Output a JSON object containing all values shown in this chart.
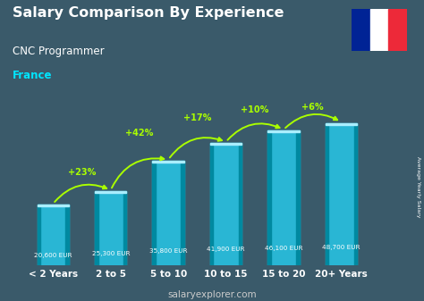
{
  "title": "Salary Comparison By Experience",
  "subtitle": "CNC Programmer",
  "country": "France",
  "categories": [
    "< 2 Years",
    "2 to 5",
    "5 to 10",
    "10 to 15",
    "15 to 20",
    "20+ Years"
  ],
  "values": [
    20600,
    25300,
    35800,
    41900,
    46100,
    48700
  ],
  "salaries": [
    "20,600 EUR",
    "25,300 EUR",
    "35,800 EUR",
    "41,900 EUR",
    "46,100 EUR",
    "48,700 EUR"
  ],
  "increases": [
    "+23%",
    "+42%",
    "+17%",
    "+10%",
    "+6%"
  ],
  "bar_color": "#29b6d4",
  "bar_color_dark": "#0089a0",
  "bar_color_top": "#aaeeff",
  "increase_color": "#aaff00",
  "title_color": "#ffffff",
  "country_color": "#00e5ff",
  "footer_color": "#cccccc",
  "bg_color": "#3a5a6a",
  "footer": "salaryexplorer.com",
  "ylim": [
    0,
    60000
  ],
  "flag_colors": [
    "#002395",
    "#ffffff",
    "#ed2939"
  ]
}
